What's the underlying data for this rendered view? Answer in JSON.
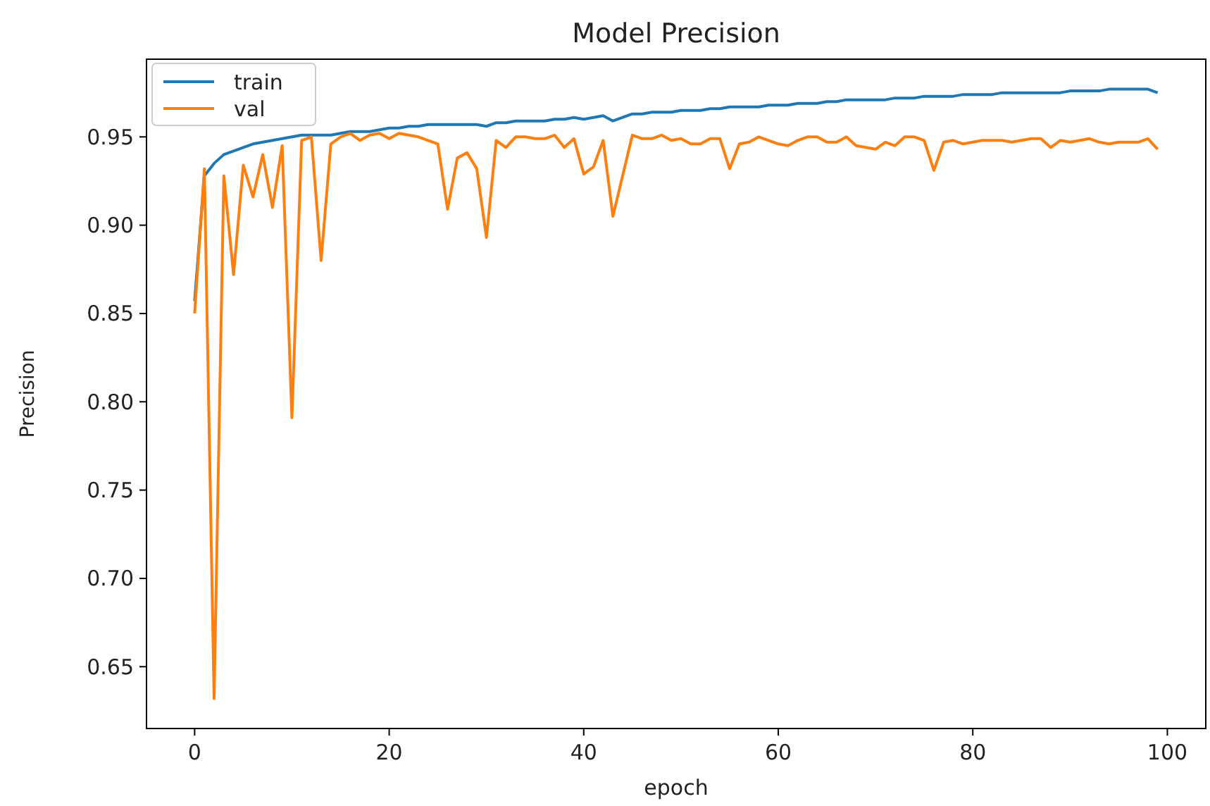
{
  "chart_data": {
    "type": "line",
    "title": "Model Precision",
    "xlabel": "epoch",
    "ylabel": "Precision",
    "x": [
      0,
      1,
      2,
      3,
      4,
      5,
      6,
      7,
      8,
      9,
      10,
      11,
      12,
      13,
      14,
      15,
      16,
      17,
      18,
      19,
      20,
      21,
      22,
      23,
      24,
      25,
      26,
      27,
      28,
      29,
      30,
      31,
      32,
      33,
      34,
      35,
      36,
      37,
      38,
      39,
      40,
      41,
      42,
      43,
      44,
      45,
      46,
      47,
      48,
      49,
      50,
      51,
      52,
      53,
      54,
      55,
      56,
      57,
      58,
      59,
      60,
      61,
      62,
      63,
      64,
      65,
      66,
      67,
      68,
      69,
      70,
      71,
      72,
      73,
      74,
      75,
      76,
      77,
      78,
      79,
      80,
      81,
      82,
      83,
      84,
      85,
      86,
      87,
      88,
      89,
      90,
      91,
      92,
      93,
      94,
      95,
      96,
      97,
      98,
      99
    ],
    "series": [
      {
        "name": "train",
        "color": "#1f77b4",
        "values": [
          0.857,
          0.928,
          0.935,
          0.94,
          0.942,
          0.944,
          0.946,
          0.947,
          0.948,
          0.949,
          0.95,
          0.951,
          0.951,
          0.951,
          0.951,
          0.952,
          0.953,
          0.953,
          0.953,
          0.954,
          0.955,
          0.955,
          0.956,
          0.956,
          0.957,
          0.957,
          0.957,
          0.957,
          0.957,
          0.957,
          0.956,
          0.958,
          0.958,
          0.959,
          0.959,
          0.959,
          0.959,
          0.96,
          0.96,
          0.961,
          0.96,
          0.961,
          0.962,
          0.959,
          0.961,
          0.963,
          0.963,
          0.964,
          0.964,
          0.964,
          0.965,
          0.965,
          0.965,
          0.966,
          0.966,
          0.967,
          0.967,
          0.967,
          0.967,
          0.968,
          0.968,
          0.968,
          0.969,
          0.969,
          0.969,
          0.97,
          0.97,
          0.971,
          0.971,
          0.971,
          0.971,
          0.971,
          0.972,
          0.972,
          0.972,
          0.973,
          0.973,
          0.973,
          0.973,
          0.974,
          0.974,
          0.974,
          0.974,
          0.975,
          0.975,
          0.975,
          0.975,
          0.975,
          0.975,
          0.975,
          0.976,
          0.976,
          0.976,
          0.976,
          0.977,
          0.977,
          0.977,
          0.977,
          0.977,
          0.975
        ]
      },
      {
        "name": "val",
        "color": "#ff7f0e",
        "values": [
          0.85,
          0.932,
          0.632,
          0.928,
          0.872,
          0.934,
          0.916,
          0.94,
          0.91,
          0.945,
          0.791,
          0.948,
          0.95,
          0.88,
          0.946,
          0.95,
          0.952,
          0.948,
          0.951,
          0.952,
          0.949,
          0.952,
          0.951,
          0.95,
          0.948,
          0.946,
          0.909,
          0.938,
          0.941,
          0.932,
          0.893,
          0.948,
          0.944,
          0.95,
          0.95,
          0.949,
          0.949,
          0.951,
          0.944,
          0.949,
          0.929,
          0.933,
          0.948,
          0.905,
          0.928,
          0.951,
          0.949,
          0.949,
          0.951,
          0.948,
          0.949,
          0.946,
          0.946,
          0.949,
          0.949,
          0.932,
          0.946,
          0.947,
          0.95,
          0.948,
          0.946,
          0.945,
          0.948,
          0.95,
          0.95,
          0.947,
          0.947,
          0.95,
          0.945,
          0.944,
          0.943,
          0.947,
          0.945,
          0.95,
          0.95,
          0.948,
          0.931,
          0.947,
          0.948,
          0.946,
          0.947,
          0.948,
          0.948,
          0.948,
          0.947,
          0.948,
          0.949,
          0.949,
          0.944,
          0.948,
          0.947,
          0.948,
          0.949,
          0.947,
          0.946,
          0.947,
          0.947,
          0.947,
          0.949,
          0.943
        ]
      }
    ],
    "xlim": [
      -4.95,
      103.95
    ],
    "ylim": [
      0.615,
      0.994
    ],
    "xticks": [
      0,
      20,
      40,
      60,
      80,
      100
    ],
    "yticks": [
      {
        "value": 0.65,
        "label": "0.65"
      },
      {
        "value": 0.7,
        "label": "0.70"
      },
      {
        "value": 0.75,
        "label": "0.75"
      },
      {
        "value": 0.8,
        "label": "0.80"
      },
      {
        "value": 0.85,
        "label": "0.85"
      },
      {
        "value": 0.9,
        "label": "0.90"
      },
      {
        "value": 0.95,
        "label": "0.95"
      }
    ],
    "legend": "top left",
    "grid": false
  }
}
